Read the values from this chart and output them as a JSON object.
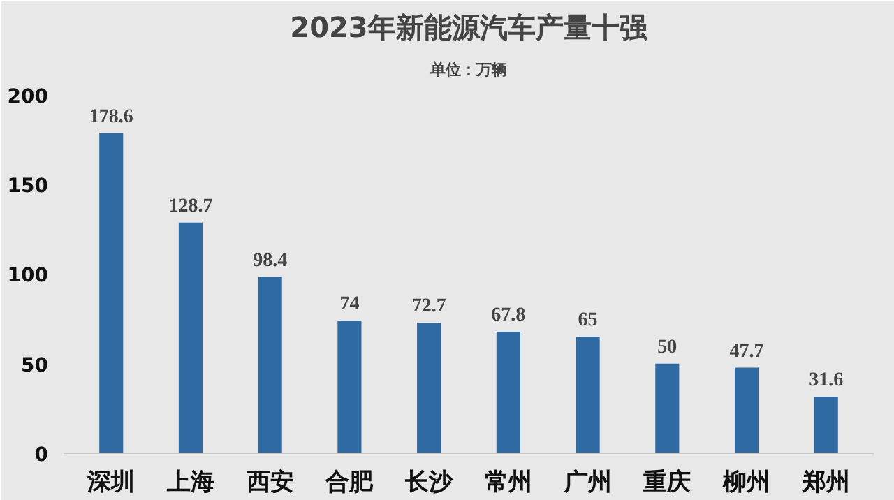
{
  "chart_data": {
    "type": "bar",
    "title": "2023年新能源汽车产量十强",
    "subtitle": "单位：万辆",
    "categories": [
      "深圳",
      "上海",
      "西安",
      "合肥",
      "长沙",
      "常州",
      "广州",
      "重庆",
      "柳州",
      "郑州"
    ],
    "values": [
      178.6,
      128.7,
      98.4,
      74,
      72.7,
      67.8,
      65,
      50,
      47.7,
      31.6
    ],
    "color": "#2f6aa3",
    "ylim": [
      0,
      205
    ],
    "yticks": [
      0,
      50,
      100,
      150,
      200
    ],
    "data_labels": true
  }
}
